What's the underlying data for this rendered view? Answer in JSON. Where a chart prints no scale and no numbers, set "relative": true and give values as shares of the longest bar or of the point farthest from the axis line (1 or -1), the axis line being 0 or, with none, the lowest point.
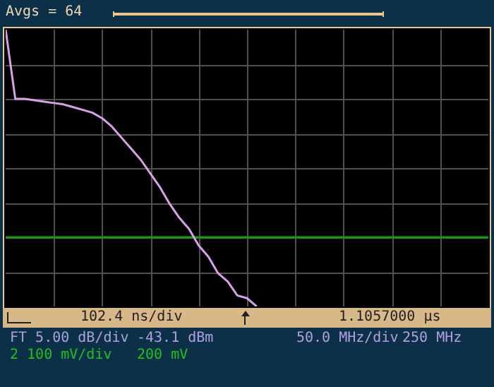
{
  "chart_data": {
    "type": "line",
    "relative": true,
    "grid": true,
    "title": "Avgs = 64",
    "categories": [
      null,
      null,
      null,
      null,
      null,
      null,
      null,
      null,
      null,
      null,
      null,
      null,
      null,
      null,
      null,
      null,
      null,
      null,
      null,
      null,
      null,
      null,
      null,
      null,
      null,
      null,
      null,
      null,
      null,
      null,
      null,
      null,
      null,
      null,
      null,
      null,
      null,
      null,
      null,
      null,
      null,
      null,
      null,
      null,
      null,
      null,
      null,
      null,
      null,
      null,
      null
    ],
    "series": [
      {
        "color": "#d8a0e8",
        "values": [
          1.0,
          0.75,
          0.75,
          0.745,
          0.74,
          0.735,
          0.73,
          0.72,
          0.71,
          0.7,
          0.68,
          0.65,
          0.61,
          0.57,
          0.53,
          0.48,
          0.43,
          0.37,
          0.32,
          0.28,
          0.22,
          0.18,
          0.12,
          0.09,
          0.04,
          0.03,
          0.0,
          null,
          null,
          null,
          null,
          null,
          null,
          null,
          null,
          null,
          null,
          null,
          null,
          null,
          null,
          null,
          null,
          null,
          null,
          null,
          null,
          null,
          null,
          null,
          null
        ]
      },
      {
        "color": "#10a010",
        "values": [
          0.25,
          0.25,
          0.25,
          0.25,
          0.25,
          0.25,
          0.25,
          0.25,
          0.25,
          0.25,
          0.25,
          0.25,
          0.25,
          0.25,
          0.25,
          0.25,
          0.25,
          0.25,
          0.25,
          0.25,
          0.25,
          0.25,
          0.25,
          0.25,
          0.25,
          0.25,
          0.25,
          0.25,
          0.25,
          0.25,
          0.25,
          0.25,
          0.25,
          0.25,
          0.25,
          0.25,
          0.25,
          0.25,
          0.25,
          0.25,
          0.25,
          0.25,
          0.25,
          0.25,
          0.25,
          0.25,
          0.25,
          0.25,
          0.25,
          0.25,
          0.25
        ]
      }
    ],
    "annotations": [
      "102.4 ns/div",
      "1.1057000 µs",
      "FT 5.00 dB/div",
      "-43.1 dBm",
      "50.0 MHz/div",
      "250 MHz",
      "2 100 mV/div",
      "200 mV"
    ]
  }
}
